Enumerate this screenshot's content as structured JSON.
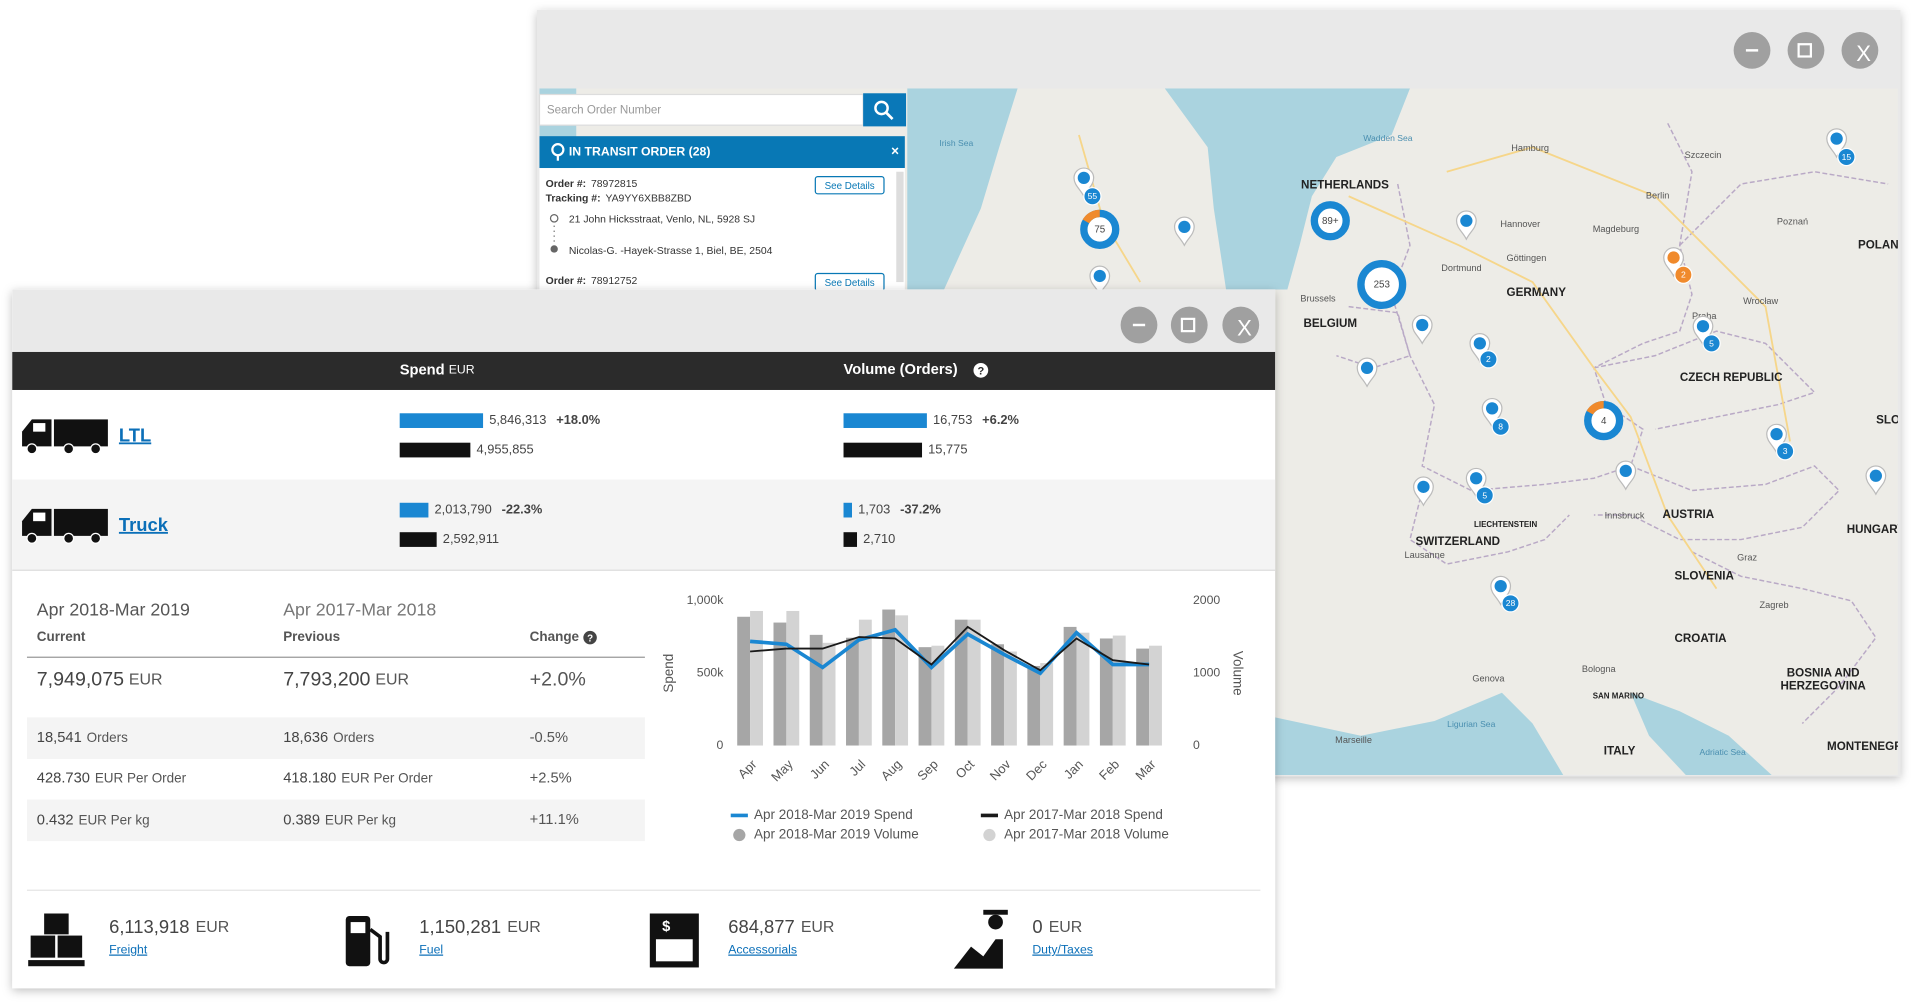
{
  "window_controls": {
    "close": "X"
  },
  "map_window": {
    "search_placeholder": "Search Order Number",
    "transit_header": "IN TRANSIT ORDER (28)",
    "orders": [
      {
        "order_label": "Order #:",
        "order_number": "78972815",
        "tracking_label": "Tracking #:",
        "tracking_number": "YA9YY6XBB8ZBD",
        "origin": "21 John Hicksstraat, Venlo, NL, 5928 SJ",
        "destination": "Nicolas-G. -Hayek-Strasse 1, Biel, BE, 2504",
        "button": "See Details"
      },
      {
        "order_label": "Order #:",
        "order_number": "78912752",
        "button": "See Details"
      }
    ],
    "countries": [
      "NETHERLANDS",
      "BELGIUM",
      "GERMANY",
      "CZECH REPUBLIC",
      "AUSTRIA",
      "SWITZERLAND",
      "LIECHTENSTEIN",
      "SLOVENIA",
      "CROATIA",
      "BOSNIA AND",
      "HERZEGOVINA",
      "HUNGARY",
      "POLAN",
      "ITALY",
      "SAN MARINO",
      "MONTENEGR",
      "SLO"
    ],
    "cities": [
      "Hamburg",
      "Berlin",
      "Hannover",
      "Dortmund",
      "Göttingen",
      "Magdeburg",
      "Poznań",
      "Wrocław",
      "Szczecin",
      "Innsbruck",
      "Zagreb",
      "Graz",
      "Genova",
      "Bologna",
      "Marseille",
      "Lausanne",
      "Brussels",
      "Praha"
    ],
    "seas": [
      "Wadden Sea",
      "Irish Sea",
      "Ligurian Sea",
      "Adriatic Sea"
    ],
    "clusters": [
      "55",
      "75",
      "253",
      "89+",
      "15",
      "2",
      "5",
      "2",
      "8",
      "4",
      "5",
      "3",
      "28"
    ]
  },
  "dashboard": {
    "header": {
      "spend": "Spend",
      "spend_unit": "EUR",
      "volume": "Volume (Orders)"
    },
    "carriers": [
      {
        "name": "LTL",
        "spend": {
          "current": {
            "value": 5846313,
            "label": "5,846,313"
          },
          "change": "+18.0%",
          "previous": {
            "value": 4955855,
            "label": "4,955,855"
          }
        },
        "volume": {
          "current": {
            "value": 16753,
            "label": "16,753"
          },
          "change": "+6.2%",
          "previous": {
            "value": 15775,
            "label": "15,775"
          }
        }
      },
      {
        "name": "Truck",
        "spend": {
          "current": {
            "value": 2013790,
            "label": "2,013,790"
          },
          "change": "-22.3%",
          "previous": {
            "value": 2592911,
            "label": "2,592,911"
          }
        },
        "volume": {
          "current": {
            "value": 1703,
            "label": "1,703"
          },
          "change": "-37.2%",
          "previous": {
            "value": 2710,
            "label": "2,710"
          }
        }
      }
    ],
    "summary": {
      "current_period": "Apr 2018-Mar 2019",
      "current_label": "Current",
      "previous_period": "Apr 2017-Mar 2018",
      "previous_label": "Previous",
      "change_label": "Change",
      "rows": [
        [
          "7,949,075",
          "EUR",
          "7,793,200",
          "EUR",
          "+2.0%"
        ],
        [
          "18,541",
          "Orders",
          "18,636",
          "Orders",
          "-0.5%"
        ],
        [
          "428.730",
          "EUR Per Order",
          "418.180",
          "EUR Per Order",
          "+2.5%"
        ],
        [
          "0.432",
          "EUR Per kg",
          "0.389",
          "EUR Per kg",
          "+11.1%"
        ]
      ]
    },
    "costs": [
      {
        "amount": "6,113,918",
        "unit": "EUR",
        "link": "Freight"
      },
      {
        "amount": "1,150,281",
        "unit": "EUR",
        "link": "Fuel"
      },
      {
        "amount": "684,877",
        "unit": "EUR",
        "link": "Accessorials"
      },
      {
        "amount": "0",
        "unit": "EUR",
        "link": "Duty/Taxes"
      }
    ]
  },
  "chart_data": {
    "type": "combo",
    "categories": [
      "Apr",
      "May",
      "Jun",
      "Jul",
      "Aug",
      "Sep",
      "Oct",
      "Nov",
      "Dec",
      "Jan",
      "Feb",
      "Mar"
    ],
    "series": [
      {
        "name": "Apr 2018-Mar 2019 Spend",
        "type": "line",
        "color": "#1a87d2",
        "values": [
          720000,
          700000,
          540000,
          730000,
          800000,
          540000,
          770000,
          630000,
          500000,
          780000,
          560000,
          560000
        ]
      },
      {
        "name": "Apr 2017-Mar 2018 Spend",
        "type": "line",
        "color": "#1a1a1a",
        "values": [
          650000,
          670000,
          670000,
          750000,
          740000,
          560000,
          820000,
          660000,
          520000,
          740000,
          590000,
          560000
        ]
      },
      {
        "name": "Apr 2018-Mar 2019 Volume",
        "type": "bar",
        "axis": "y2",
        "color": "#a6a6a6",
        "values": [
          1780,
          1700,
          1530,
          1490,
          1880,
          1360,
          1740,
          1400,
          1100,
          1640,
          1480,
          1340
        ]
      },
      {
        "name": "Apr 2017-Mar 2018 Volume",
        "type": "bar",
        "axis": "y2",
        "color": "#d3d3d3",
        "values": [
          1860,
          1860,
          1420,
          1740,
          1800,
          1380,
          1740,
          1300,
          1140,
          1560,
          1520,
          1380
        ]
      }
    ],
    "ylabel": "Spend",
    "y2label": "Volume",
    "ylim": [
      0,
      1000000
    ],
    "yticks": [
      0,
      {
        "value": 500000,
        "label": "500k"
      },
      {
        "value": 1000000,
        "label": "1,000k"
      }
    ],
    "y2lim": [
      0,
      2000
    ],
    "y2ticks": [
      0,
      1000,
      2000
    ]
  }
}
